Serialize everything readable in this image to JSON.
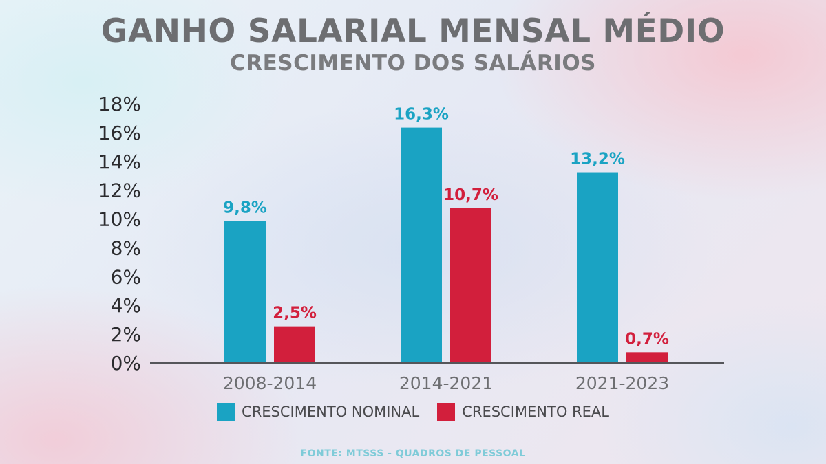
{
  "title": "GANHO SALARIAL MENSAL MÉDIO",
  "subtitle": "CRESCIMENTO DOS SALÁRIOS",
  "source": "FONTE: MTSSS - QUADROS DE PESSOAL",
  "colors": {
    "nominal": "#1aa3c3",
    "real": "#d21f3c",
    "axis": "#55565a",
    "tick_text": "#2b2b2e",
    "category_text": "#6d6e71"
  },
  "chart_data": {
    "type": "bar",
    "title": "GANHO SALARIAL MENSAL MÉDIO",
    "subtitle": "CRESCIMENTO DOS SALÁRIOS",
    "categories": [
      "2008-2014",
      "2014-2021",
      "2021-2023"
    ],
    "series": [
      {
        "name": "CRESCIMENTO NOMINAL",
        "values": [
          9.8,
          16.3,
          13.2
        ],
        "labels": [
          "9,8%",
          "16,3%",
          "13,2%"
        ]
      },
      {
        "name": "CRESCIMENTO REAL",
        "values": [
          2.5,
          10.7,
          0.7
        ],
        "labels": [
          "2,5%",
          "10,7%",
          "0,7%"
        ]
      }
    ],
    "ylim": [
      0,
      18
    ],
    "yticks": [
      0,
      2,
      4,
      6,
      8,
      10,
      12,
      14,
      16,
      18
    ],
    "ytick_labels": [
      "0%",
      "2%",
      "4%",
      "6%",
      "8%",
      "10%",
      "12%",
      "14%",
      "16%",
      "18%"
    ],
    "grid": false,
    "legend_position": "bottom"
  }
}
